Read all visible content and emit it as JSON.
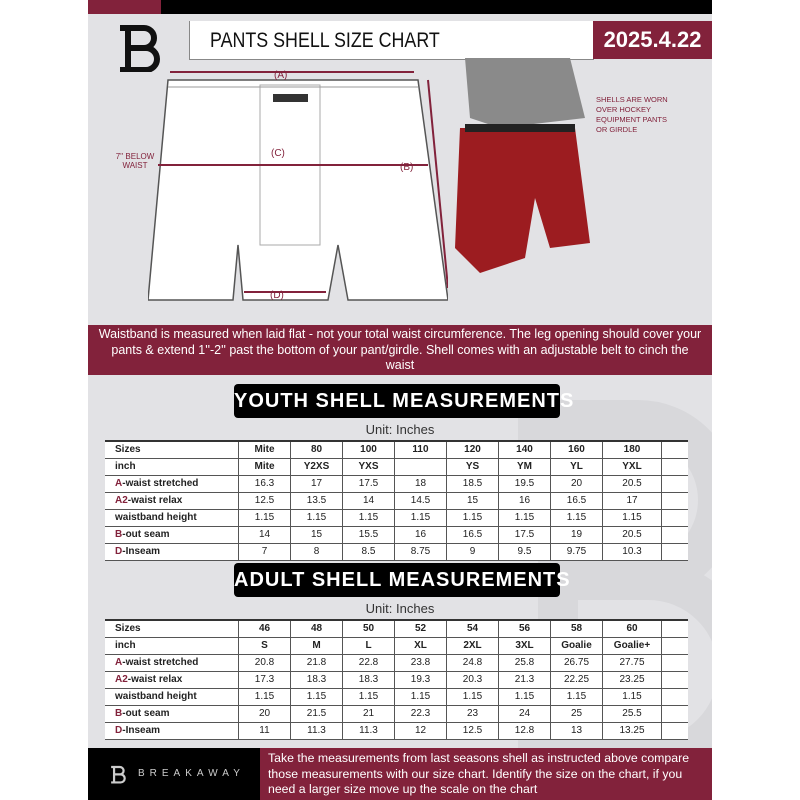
{
  "header": {
    "title": "PANTS SHELL SIZE CHART",
    "date": "2025.4.22"
  },
  "diagram": {
    "label_a": "(A)",
    "label_b": "(B)",
    "label_c": "(C)",
    "label_d": "(D)",
    "below_waist": "7'' BELOW WAIST",
    "shell_note": "SHELLS ARE WORN OVER HOCKEY EQUIPMENT PANTS OR GIRDLE"
  },
  "band_text": "Waistband is measured when laid flat - not your total waist circumference. The leg opening should cover your pants & extend 1''-2'' past the bottom of your pant/girdle. Shell comes with an adjustable belt to cinch the waist",
  "youth": {
    "title": "YOUTH SHELL MEASUREMENTS",
    "unit": "Unit: Inches",
    "rows": [
      {
        "prefix": "",
        "label": "Sizes",
        "cells": [
          "Mite",
          "80",
          "100",
          "110",
          "120",
          "140",
          "160",
          "180"
        ]
      },
      {
        "prefix": "",
        "label": "inch",
        "cells": [
          "Mite",
          "Y2XS",
          "YXS",
          "",
          "YS",
          "YM",
          "YL",
          "YXL"
        ]
      },
      {
        "prefix": "A",
        "label": "-waist stretched",
        "cells": [
          "16.3",
          "17",
          "17.5",
          "18",
          "18.5",
          "19.5",
          "20",
          "20.5"
        ]
      },
      {
        "prefix": "A2",
        "label": "-waist relax",
        "cells": [
          "12.5",
          "13.5",
          "14",
          "14.5",
          "15",
          "16",
          "16.5",
          "17"
        ]
      },
      {
        "prefix": "",
        "label": "waistband height",
        "cells": [
          "1.15",
          "1.15",
          "1.15",
          "1.15",
          "1.15",
          "1.15",
          "1.15",
          "1.15"
        ]
      },
      {
        "prefix": "B",
        "label": "-out seam",
        "cells": [
          "14",
          "15",
          "15.5",
          "16",
          "16.5",
          "17.5",
          "19",
          "20.5"
        ]
      },
      {
        "prefix": "D",
        "label": "-Inseam",
        "cells": [
          "7",
          "8",
          "8.5",
          "8.75",
          "9",
          "9.5",
          "9.75",
          "10.3"
        ]
      }
    ]
  },
  "adult": {
    "title": "ADULT SHELL MEASUREMENTS",
    "unit": "Unit: Inches",
    "rows": [
      {
        "prefix": "",
        "label": "Sizes",
        "cells": [
          "46",
          "48",
          "50",
          "52",
          "54",
          "56",
          "58",
          "60"
        ]
      },
      {
        "prefix": "",
        "label": "inch",
        "cells": [
          "S",
          "M",
          "L",
          "XL",
          "2XL",
          "3XL",
          "Goalie",
          "Goalie+"
        ]
      },
      {
        "prefix": "A",
        "label": "-waist stretched",
        "cells": [
          "20.8",
          "21.8",
          "22.8",
          "23.8",
          "24.8",
          "25.8",
          "26.75",
          "27.75"
        ]
      },
      {
        "prefix": "A2",
        "label": "-waist relax",
        "cells": [
          "17.3",
          "18.3",
          "18.3",
          "19.3",
          "20.3",
          "21.3",
          "22.25",
          "23.25"
        ]
      },
      {
        "prefix": "",
        "label": "waistband height",
        "cells": [
          "1.15",
          "1.15",
          "1.15",
          "1.15",
          "1.15",
          "1.15",
          "1.15",
          "1.15"
        ]
      },
      {
        "prefix": "B",
        "label": "-out seam",
        "cells": [
          "20",
          "21.5",
          "21",
          "22.3",
          "23",
          "24",
          "25",
          "25.5"
        ]
      },
      {
        "prefix": "D",
        "label": "-Inseam",
        "cells": [
          "11",
          "11.3",
          "11.3",
          "12",
          "12.5",
          "12.8",
          "13",
          "13.25"
        ]
      }
    ]
  },
  "footer": {
    "brand": "BREAKAWAY",
    "text": "Take the measurements from last seasons shell as instructed above compare those measurements  with our size chart. Identify the size on the chart, if you need a larger size move up the scale on the chart"
  },
  "colors": {
    "accent": "#82223b",
    "dark": "#000000",
    "background": "#e2e2e5"
  }
}
